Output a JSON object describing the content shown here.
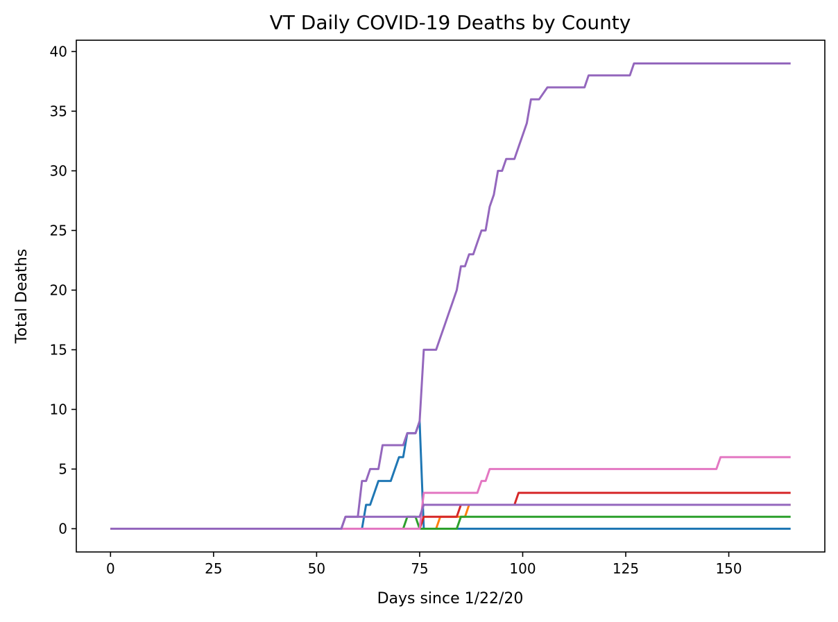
{
  "chart_data": {
    "type": "line",
    "title": "VT Daily COVID-19 Deaths by County",
    "xlabel": "Days since 1/22/20",
    "ylabel": "Total Deaths",
    "xlim": [
      -8.3,
      173.3
    ],
    "ylim": [
      -1.95,
      40.95
    ],
    "xticks": [
      0,
      25,
      50,
      75,
      100,
      125,
      150
    ],
    "yticks": [
      0,
      5,
      10,
      15,
      20,
      25,
      30,
      35,
      40
    ],
    "grid": false,
    "series": [
      {
        "color": "#1f77b4",
        "points": [
          [
            0,
            0
          ],
          [
            61,
            0
          ],
          [
            62,
            2
          ],
          [
            63,
            2
          ],
          [
            64,
            3
          ],
          [
            65,
            4
          ],
          [
            68,
            4
          ],
          [
            70,
            6
          ],
          [
            71,
            6
          ],
          [
            72,
            8
          ],
          [
            74,
            8
          ],
          [
            75,
            9
          ],
          [
            76,
            0
          ],
          [
            165,
            0
          ]
        ]
      },
      {
        "color": "#ff7f0e",
        "points": [
          [
            0,
            0
          ],
          [
            79,
            0
          ],
          [
            80,
            1
          ],
          [
            86,
            1
          ],
          [
            87,
            2
          ],
          [
            165,
            2
          ]
        ]
      },
      {
        "color": "#2ca02c",
        "points": [
          [
            0,
            0
          ],
          [
            71,
            0
          ],
          [
            72,
            1
          ],
          [
            74,
            1
          ],
          [
            75,
            0
          ],
          [
            84,
            0
          ],
          [
            85,
            1
          ],
          [
            165,
            1
          ]
        ]
      },
      {
        "color": "#d62728",
        "points": [
          [
            0,
            0
          ],
          [
            75,
            0
          ],
          [
            76,
            1
          ],
          [
            84,
            1
          ],
          [
            85,
            2
          ],
          [
            98,
            2
          ],
          [
            99,
            3
          ],
          [
            165,
            3
          ]
        ]
      },
      {
        "color": "#e377c2",
        "points": [
          [
            0,
            0
          ],
          [
            75,
            0
          ],
          [
            76,
            3
          ],
          [
            89,
            3
          ],
          [
            90,
            4
          ],
          [
            91,
            4
          ],
          [
            92,
            5
          ],
          [
            147,
            5
          ],
          [
            148,
            6
          ],
          [
            165,
            6
          ]
        ]
      },
      {
        "color": "#9467bd",
        "points": [
          [
            0,
            0
          ],
          [
            56,
            0
          ],
          [
            57,
            1
          ],
          [
            75,
            1
          ],
          [
            76,
            2
          ],
          [
            165,
            2
          ]
        ]
      },
      {
        "color": "#9467bd",
        "points": [
          [
            0,
            0
          ],
          [
            56,
            0
          ],
          [
            57,
            1
          ],
          [
            60,
            1
          ],
          [
            61,
            4
          ],
          [
            62,
            4
          ],
          [
            63,
            5
          ],
          [
            65,
            5
          ],
          [
            66,
            7
          ],
          [
            71,
            7
          ],
          [
            72,
            8
          ],
          [
            74,
            8
          ],
          [
            75,
            9
          ],
          [
            76,
            15
          ],
          [
            79,
            15
          ],
          [
            80,
            16
          ],
          [
            81,
            17
          ],
          [
            82,
            18
          ],
          [
            83,
            19
          ],
          [
            84,
            20
          ],
          [
            85,
            22
          ],
          [
            86,
            22
          ],
          [
            87,
            23
          ],
          [
            88,
            23
          ],
          [
            89,
            24
          ],
          [
            90,
            25
          ],
          [
            91,
            25
          ],
          [
            92,
            27
          ],
          [
            93,
            28
          ],
          [
            94,
            30
          ],
          [
            95,
            30
          ],
          [
            96,
            31
          ],
          [
            98,
            31
          ],
          [
            99,
            32
          ],
          [
            100,
            33
          ],
          [
            101,
            34
          ],
          [
            102,
            36
          ],
          [
            104,
            36
          ],
          [
            106,
            37
          ],
          [
            115,
            37
          ],
          [
            116,
            38
          ],
          [
            126,
            38
          ],
          [
            127,
            39
          ],
          [
            165,
            39
          ]
        ]
      }
    ]
  }
}
